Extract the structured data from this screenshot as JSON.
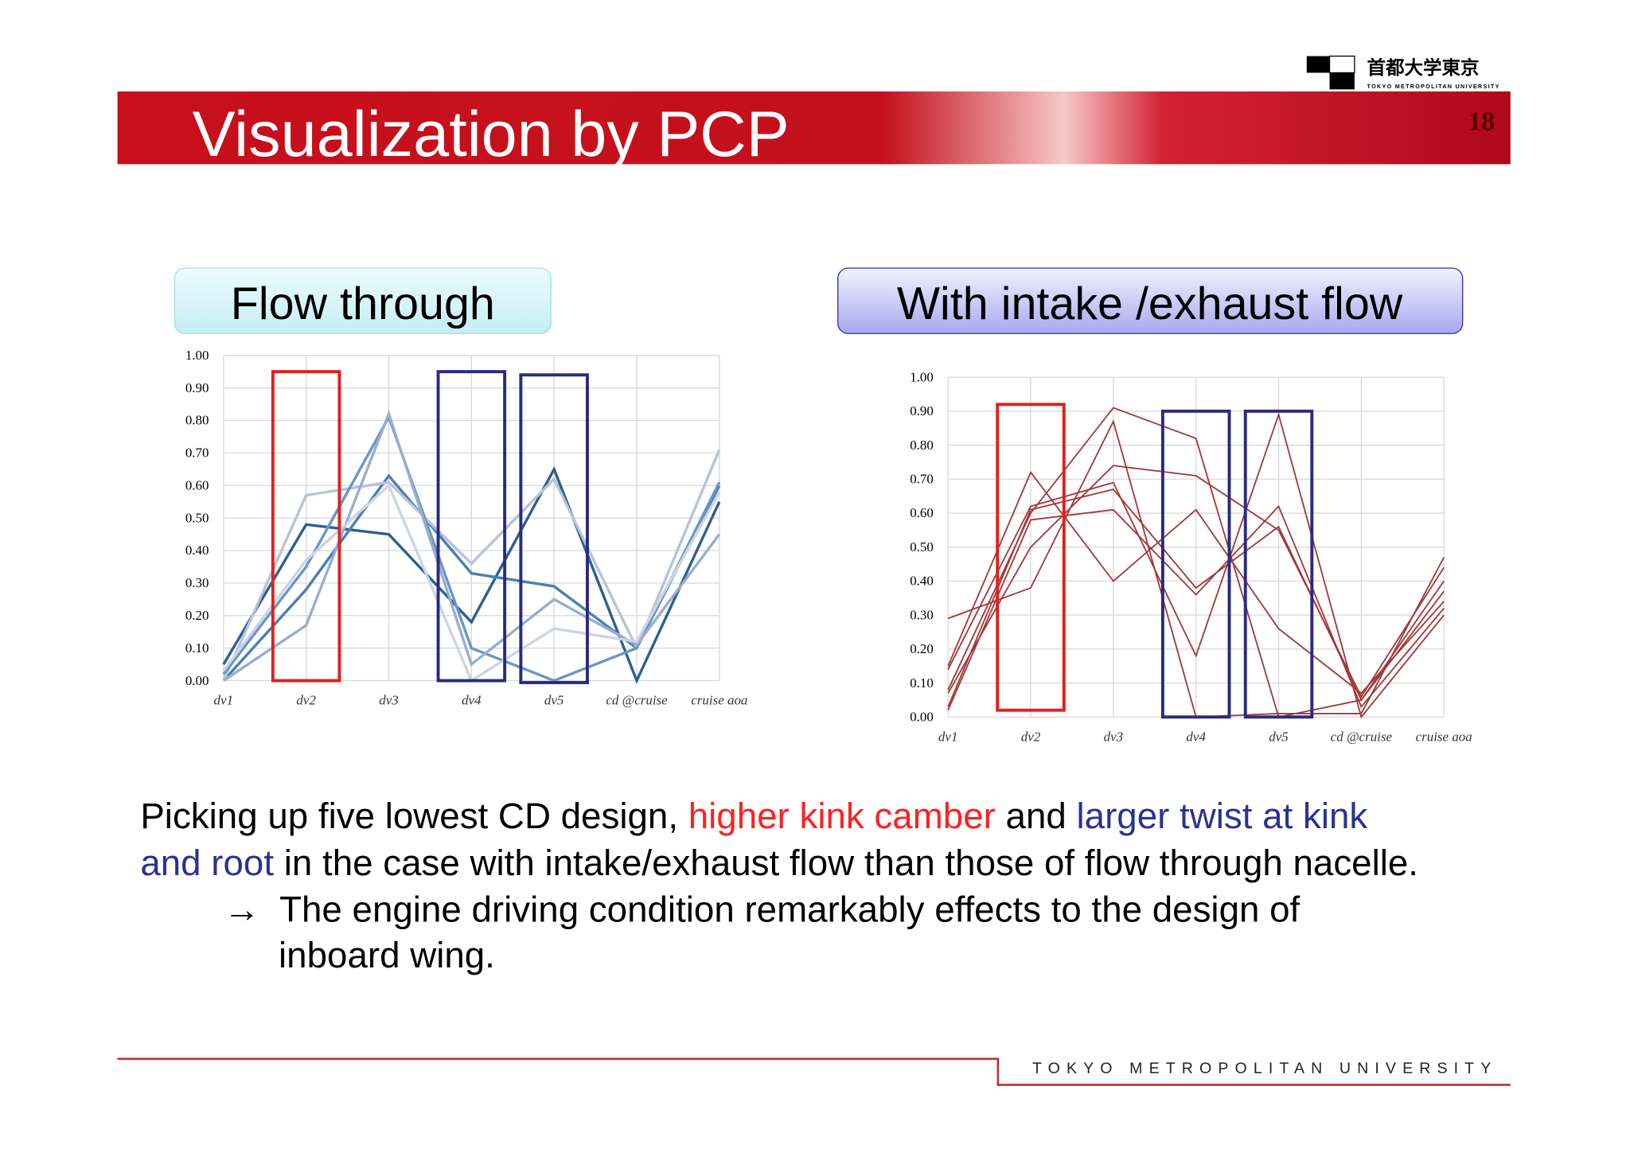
{
  "header": {
    "title": "Visualization by PCP",
    "page_number": "18",
    "logo_text": "首都大学東京",
    "logo_subtext": "TOKYO METROPOLITAN UNIVERSITY"
  },
  "chart_data": [
    {
      "type": "parallel",
      "title": "Flow through",
      "categories": [
        "dv1",
        "dv2",
        "dv3",
        "dv4",
        "dv5",
        "cd @cruise",
        "cruise aoa"
      ],
      "ylim": [
        0,
        1
      ],
      "yticks": [
        {
          "value": 0,
          "label": "0.00"
        },
        {
          "value": 0.1,
          "label": "0.10"
        },
        {
          "value": 0.2,
          "label": "0.20"
        },
        {
          "value": 0.3,
          "label": "0.30"
        },
        {
          "value": 0.4,
          "label": "0.40"
        },
        {
          "value": 0.5,
          "label": "0.50"
        },
        {
          "value": 0.6,
          "label": "0.60"
        },
        {
          "value": 0.7,
          "label": "0.70"
        },
        {
          "value": 0.8,
          "label": "0.80"
        },
        {
          "value": 0.9,
          "label": "0.90"
        },
        {
          "value": 1,
          "label": "1.00"
        }
      ],
      "grid": true,
      "series": [
        {
          "color": "#2f5f8f",
          "values": [
            0.05,
            0.48,
            0.45,
            0.18,
            0.65,
            0.0,
            0.55
          ]
        },
        {
          "color": "#4a7fb0",
          "values": [
            0.0,
            0.28,
            0.63,
            0.33,
            0.29,
            0.1,
            0.6
          ]
        },
        {
          "color": "#b8c2d8",
          "values": [
            0.0,
            0.57,
            0.61,
            0.36,
            0.62,
            0.1,
            0.71
          ]
        },
        {
          "color": "#6a96c4",
          "values": [
            0.02,
            0.35,
            0.81,
            0.1,
            0.0,
            0.1,
            0.61
          ]
        },
        {
          "color": "#98aed0",
          "values": [
            0.0,
            0.17,
            0.82,
            0.05,
            0.25,
            0.11,
            0.45
          ]
        },
        {
          "color": "#ccd4e4",
          "values": [
            0.03,
            0.37,
            0.6,
            0.0,
            0.16,
            0.12,
            0.58
          ]
        }
      ]
    },
    {
      "type": "parallel",
      "title": "With intake /exhaust flow",
      "categories": [
        "dv1",
        "dv2",
        "dv3",
        "dv4",
        "dv5",
        "cd @cruise",
        "cruise aoa"
      ],
      "ylim": [
        0,
        1
      ],
      "yticks": [
        {
          "value": 0,
          "label": "0.00"
        },
        {
          "value": 0.1,
          "label": "0.10"
        },
        {
          "value": 0.2,
          "label": "0.20"
        },
        {
          "value": 0.3,
          "label": "0.30"
        },
        {
          "value": 0.4,
          "label": "0.40"
        },
        {
          "value": 0.5,
          "label": "0.50"
        },
        {
          "value": 0.6,
          "label": "0.60"
        },
        {
          "value": 0.7,
          "label": "0.70"
        },
        {
          "value": 0.8,
          "label": "0.80"
        },
        {
          "value": 0.9,
          "label": "0.90"
        },
        {
          "value": 1,
          "label": "1.00"
        }
      ],
      "grid": true,
      "series": [
        {
          "color": "#a0393a",
          "values": [
            0.29,
            0.38,
            0.87,
            0.0,
            0.01,
            0.01,
            0.47
          ]
        },
        {
          "color": "#a0393a",
          "values": [
            0.15,
            0.72,
            0.4,
            0.61,
            0.26,
            0.07,
            0.34
          ]
        },
        {
          "color": "#a0393a",
          "values": [
            0.08,
            0.6,
            0.91,
            0.82,
            0.0,
            0.05,
            0.4
          ]
        },
        {
          "color": "#a0393a",
          "values": [
            0.02,
            0.58,
            0.61,
            0.36,
            0.62,
            0.03,
            0.32
          ]
        },
        {
          "color": "#a0393a",
          "values": [
            0.07,
            0.5,
            0.74,
            0.71,
            0.55,
            0.06,
            0.44
          ]
        },
        {
          "color": "#a0393a",
          "values": [
            0.14,
            0.62,
            0.69,
            0.18,
            0.89,
            0.0,
            0.3
          ]
        },
        {
          "color": "#a0393a",
          "values": [
            0.03,
            0.61,
            0.67,
            0.38,
            0.56,
            0.05,
            0.37
          ]
        }
      ]
    }
  ],
  "body": {
    "lines": [
      [
        "Picking up five lowest CD design, ",
        "higher kink camber",
        " and ",
        "larger twist at kink"
      ],
      [
        "and root",
        " in the case with intake/exhaust flow than those of flow through nacelle."
      ],
      [
        "→  The engine driving condition remarkably effects to the design of"
      ],
      [
        "inboard wing."
      ]
    ]
  },
  "footer": {
    "text": "TOKYO METROPOLITAN UNIVERSITY"
  }
}
